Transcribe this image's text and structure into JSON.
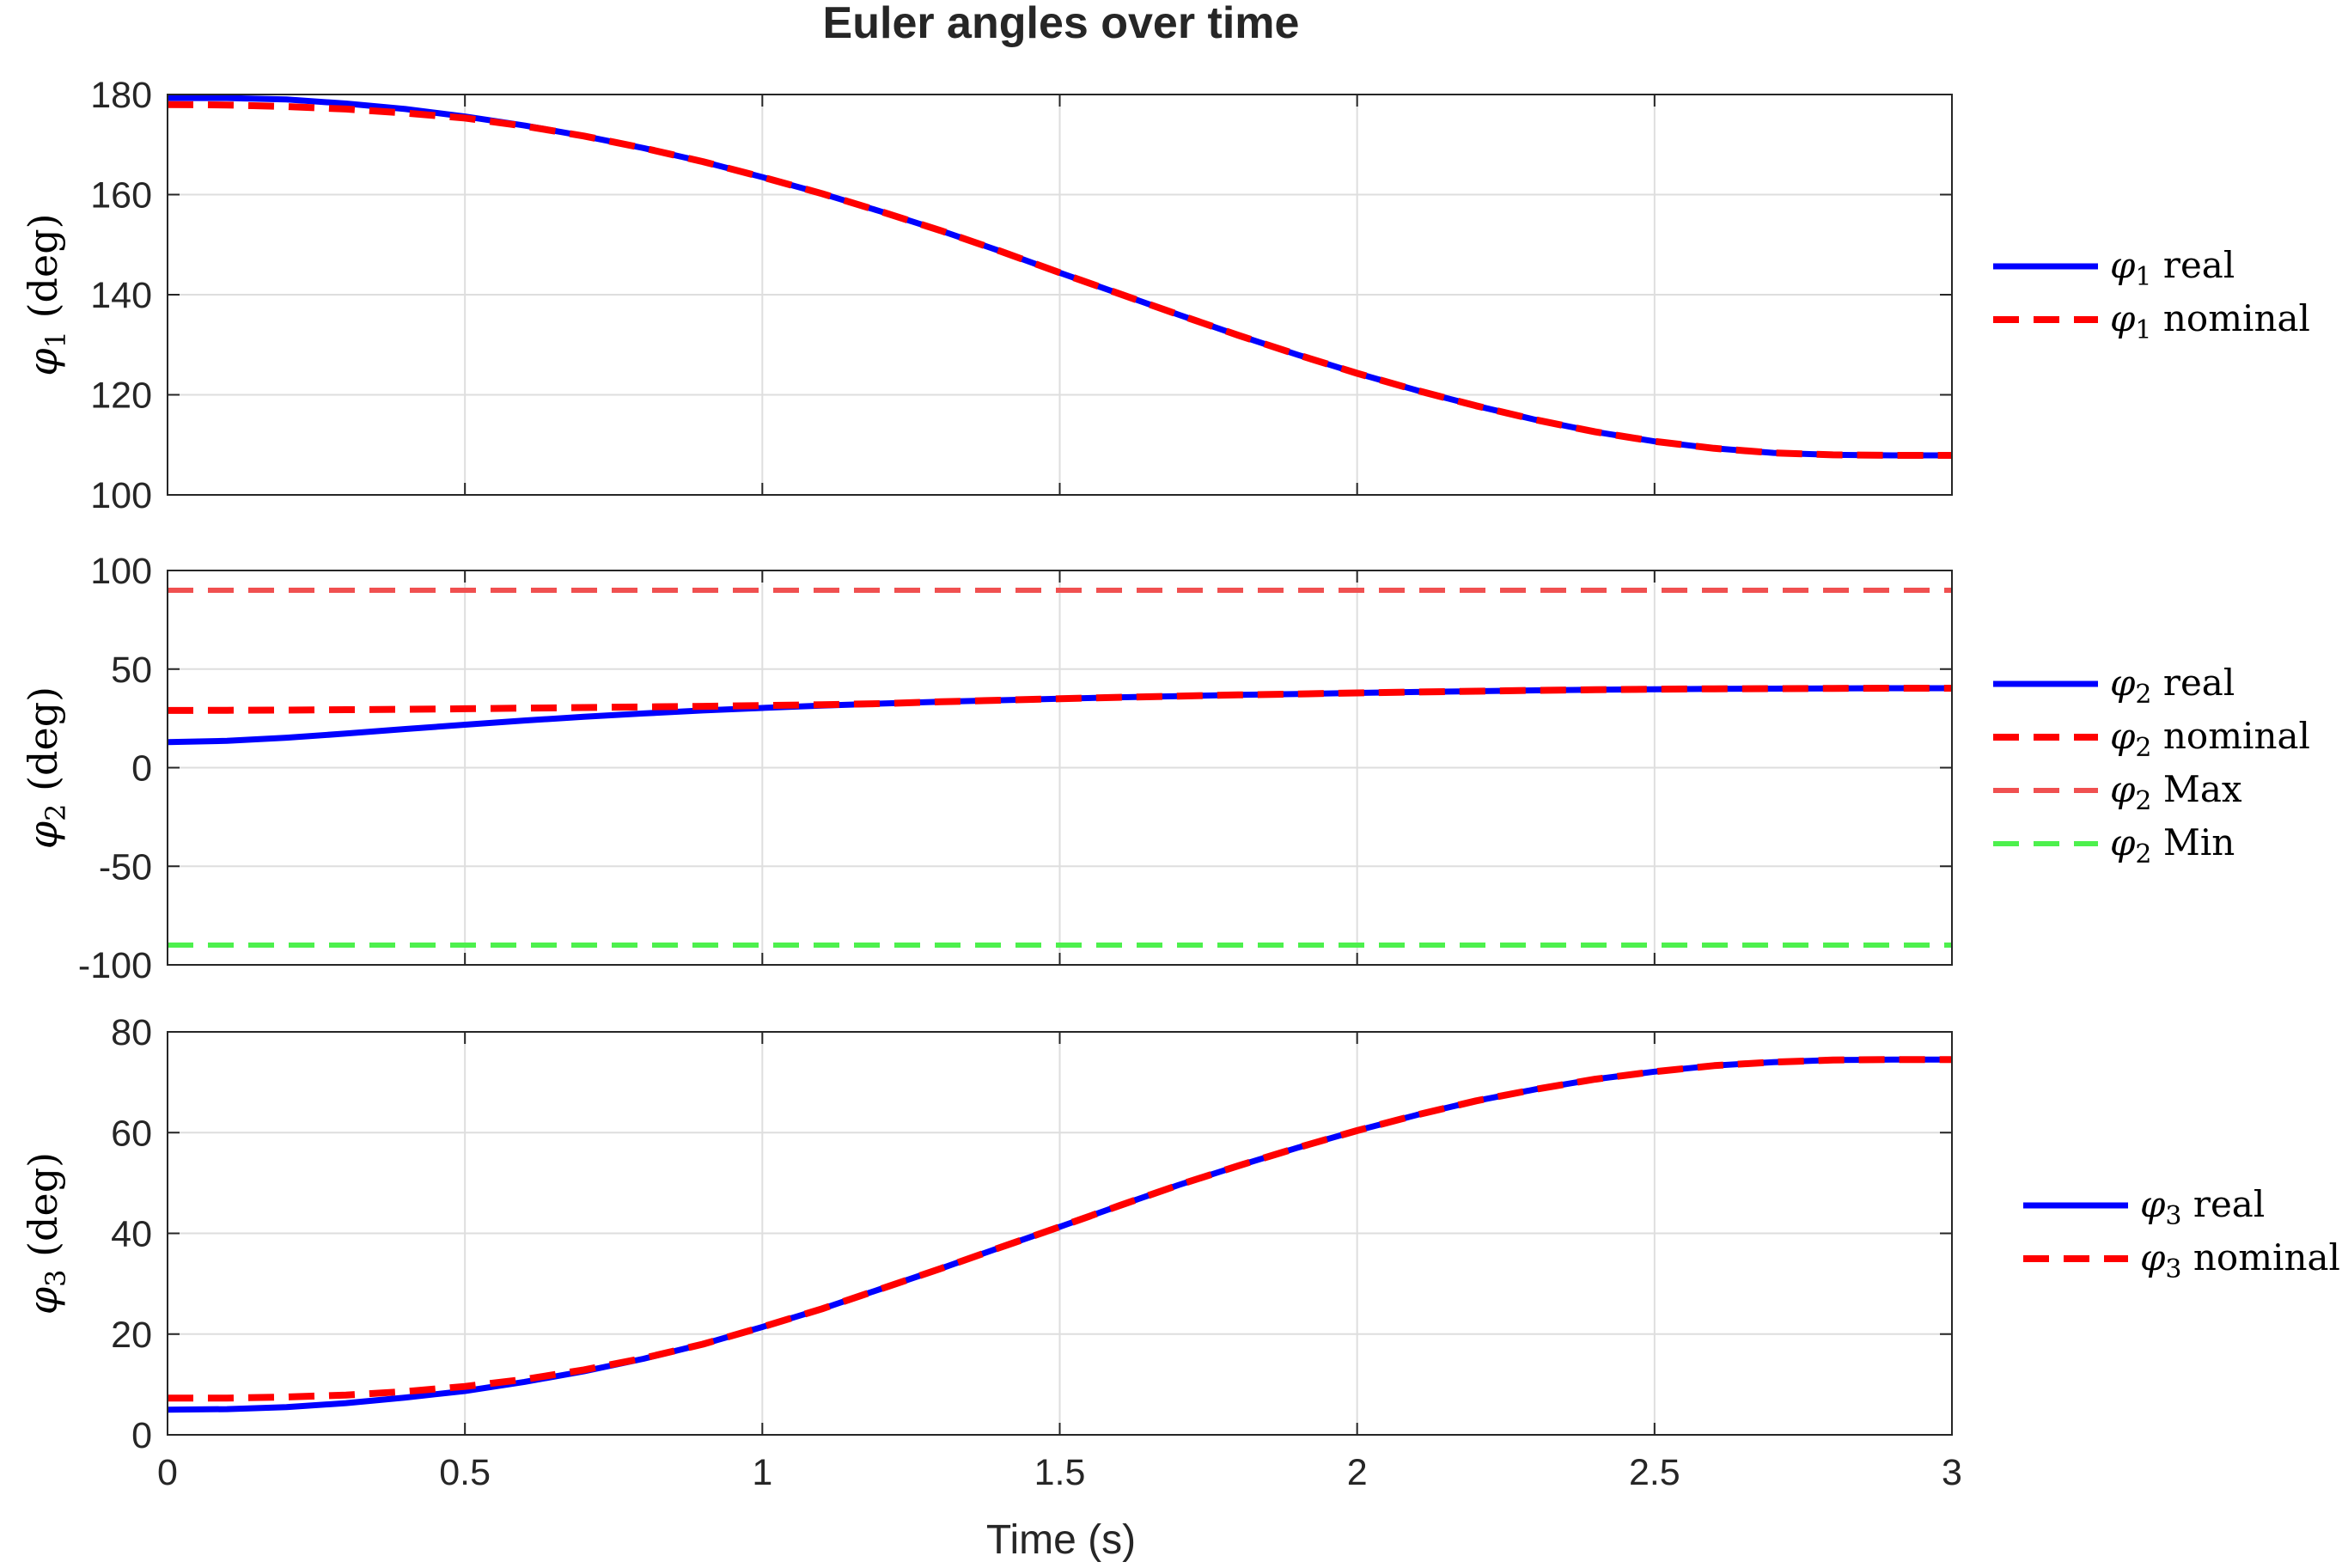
{
  "chart_data": {
    "title": "Euler angles over time",
    "xlabel": "Time (s)",
    "xlim": [
      0,
      3
    ],
    "xticks": [
      0,
      0.5,
      1,
      1.5,
      2,
      2.5,
      3
    ],
    "xtick_labels": [
      "0",
      "0.5",
      "1",
      "1.5",
      "2",
      "2.5",
      "3"
    ],
    "x": [
      0,
      0.1,
      0.2,
      0.3,
      0.4,
      0.5,
      0.6,
      0.7,
      0.8,
      0.9,
      1.0,
      1.1,
      1.2,
      1.3,
      1.4,
      1.5,
      1.6,
      1.7,
      1.8,
      1.9,
      2.0,
      2.1,
      2.2,
      2.3,
      2.4,
      2.5,
      2.6,
      2.7,
      2.8,
      2.9,
      3.0
    ],
    "grid": true,
    "legend_location": "outside-right",
    "colors": {
      "real": "#0000ff",
      "nominal": "#ff0000",
      "max": "#f05050",
      "min": "#4df04d"
    },
    "subplots": [
      {
        "type": "line",
        "ylabel_symbol": "φ",
        "ylabel_sub": "1",
        "ylabel_unit": "(deg)",
        "ylim": [
          100,
          180
        ],
        "yticks": [
          100,
          120,
          140,
          160,
          180
        ],
        "ytick_labels": [
          "100",
          "120",
          "140",
          "160",
          "180"
        ],
        "series": [
          {
            "key": "real",
            "legend_symbol": "φ",
            "legend_sub": "1",
            "legend_text": "real",
            "style": "solid",
            "y": [
              179.3,
              179.3,
              179.0,
              178.2,
              177.1,
              175.6,
              173.8,
              171.7,
              169.3,
              166.6,
              163.5,
              160.2,
              156.6,
              152.8,
              148.7,
              144.4,
              140.2,
              136.0,
              131.9,
              128.0,
              124.3,
              120.9,
              117.8,
              115.0,
              112.6,
              110.7,
              109.3,
              108.4,
              108.0,
              107.9,
              107.9
            ]
          },
          {
            "key": "nominal",
            "legend_symbol": "φ",
            "legend_sub": "1",
            "legend_text": "nominal",
            "style": "dashed",
            "y": [
              178.0,
              177.9,
              177.6,
              177.1,
              176.3,
              175.3,
              173.7,
              171.7,
              169.3,
              166.6,
              163.5,
              160.2,
              156.6,
              152.8,
              148.7,
              144.4,
              140.2,
              136.0,
              131.9,
              128.0,
              124.3,
              120.9,
              117.8,
              115.0,
              112.6,
              110.7,
              109.3,
              108.4,
              108.0,
              107.9,
              107.9
            ]
          }
        ]
      },
      {
        "type": "line",
        "ylabel_symbol": "φ",
        "ylabel_sub": "2",
        "ylabel_unit": "(deg)",
        "ylim": [
          -100,
          100
        ],
        "yticks": [
          -100,
          -50,
          0,
          50,
          100
        ],
        "ytick_labels": [
          "-100",
          "-50",
          "0",
          "50",
          "100"
        ],
        "series": [
          {
            "key": "real",
            "legend_symbol": "φ",
            "legend_sub": "2",
            "legend_text": "real",
            "style": "solid",
            "y": [
              13.0,
              13.6,
              15.2,
              17.3,
              19.6,
              21.8,
              23.9,
              25.8,
              27.5,
              29.0,
              30.3,
              31.5,
              32.5,
              33.4,
              34.2,
              35.0,
              35.7,
              36.3,
              36.9,
              37.4,
              37.9,
              38.4,
              38.8,
              39.2,
              39.5,
              39.8,
              40.0,
              40.1,
              40.2,
              40.3,
              40.3
            ]
          },
          {
            "key": "nominal",
            "legend_symbol": "φ",
            "legend_sub": "2",
            "legend_text": "nominal",
            "style": "dashed",
            "y": [
              29.0,
              29.1,
              29.2,
              29.4,
              29.6,
              29.9,
              30.2,
              30.5,
              30.8,
              31.1,
              31.5,
              31.9,
              32.5,
              33.4,
              34.2,
              35.0,
              35.7,
              36.3,
              36.9,
              37.4,
              37.9,
              38.4,
              38.8,
              39.2,
              39.5,
              39.8,
              40.0,
              40.1,
              40.2,
              40.3,
              40.3
            ]
          },
          {
            "key": "max",
            "legend_symbol": "φ",
            "legend_sub": "2",
            "legend_text": "Max",
            "style": "dashed",
            "y": [
              90,
              90,
              90,
              90,
              90,
              90,
              90,
              90,
              90,
              90,
              90,
              90,
              90,
              90,
              90,
              90,
              90,
              90,
              90,
              90,
              90,
              90,
              90,
              90,
              90,
              90,
              90,
              90,
              90,
              90,
              90
            ]
          },
          {
            "key": "min",
            "legend_symbol": "φ",
            "legend_sub": "2",
            "legend_text": "Min",
            "style": "dashed",
            "y": [
              -90,
              -90,
              -90,
              -90,
              -90,
              -90,
              -90,
              -90,
              -90,
              -90,
              -90,
              -90,
              -90,
              -90,
              -90,
              -90,
              -90,
              -90,
              -90,
              -90,
              -90,
              -90,
              -90,
              -90,
              -90,
              -90,
              -90,
              -90,
              -90,
              -90,
              -90
            ]
          }
        ]
      },
      {
        "type": "line",
        "ylabel_symbol": "φ",
        "ylabel_sub": "3",
        "ylabel_unit": "(deg)",
        "ylim": [
          0,
          80
        ],
        "yticks": [
          0,
          20,
          40,
          60,
          80
        ],
        "ytick_labels": [
          "0",
          "20",
          "40",
          "60",
          "80"
        ],
        "series": [
          {
            "key": "real",
            "legend_symbol": "φ",
            "legend_sub": "3",
            "legend_text": "real",
            "style": "solid",
            "y": [
              5.0,
              5.1,
              5.5,
              6.3,
              7.4,
              8.7,
              10.5,
              12.6,
              15.1,
              18.0,
              21.4,
              25.0,
              29.0,
              33.0,
              37.2,
              41.3,
              45.5,
              49.6,
              53.4,
              57.0,
              60.4,
              63.5,
              66.3,
              68.6,
              70.6,
              72.1,
              73.3,
              74.0,
              74.4,
              74.5,
              74.5
            ]
          },
          {
            "key": "nominal",
            "legend_symbol": "φ",
            "legend_sub": "3",
            "legend_text": "nominal",
            "style": "dashed",
            "y": [
              7.3,
              7.3,
              7.5,
              7.9,
              8.6,
              9.6,
              11.0,
              12.9,
              15.2,
              18.0,
              21.4,
              25.0,
              29.0,
              33.0,
              37.2,
              41.3,
              45.5,
              49.6,
              53.4,
              57.0,
              60.4,
              63.5,
              66.3,
              68.6,
              70.6,
              72.1,
              73.3,
              74.0,
              74.4,
              74.5,
              74.5
            ]
          }
        ]
      }
    ]
  }
}
